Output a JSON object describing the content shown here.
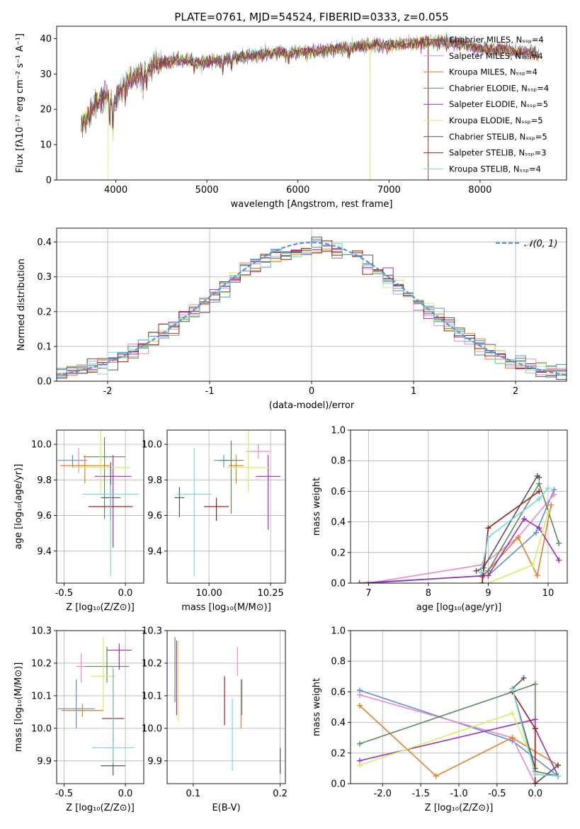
{
  "colors": [
    "#5b8fd8",
    "#e889c7",
    "#e67e22",
    "#5c8a5c",
    "#9b2eb8",
    "#d4f060",
    "#555555",
    "#9e1c1c",
    "#78d8d8"
  ],
  "chart_data": [
    {
      "id": "spectrum",
      "type": "line",
      "title": "PLATE=0761, MJD=54524, FIBERID=0333, z=0.055",
      "xlabel": "wavelength [Angstrom, rest frame]",
      "ylabel": "Flux [fλ10⁻¹⁷ erg cm⁻² s⁻¹ A⁻¹]",
      "xlim": [
        3350,
        8950
      ],
      "ylim": [
        0,
        43.5
      ],
      "xticks": [
        4000,
        5000,
        6000,
        7000,
        8000
      ],
      "yticks": [
        0,
        10,
        20,
        30,
        40
      ],
      "grid": false,
      "legend_position": "top-right",
      "legend": [
        "Chabrier MILES, Nₛₛₚ=4",
        "Salpeter MILES, Nₛₛₚ=4",
        "Kroupa MILES, Nₛₛₚ=4",
        "Chabrier ELODIE, Nₛₛₚ=4",
        "Salpeter ELODIE, Nₛₛₚ=5",
        "Kroupa ELODIE, Nₛₛₚ=5",
        "Chabrier STELIB, Nₛₛₚ=5",
        "Salpeter STELIB, Nₛₛₚ=3",
        "Kroupa STELIB, Nₛₛₚ=4"
      ],
      "legend_colors_index": [
        6,
        1,
        2,
        3,
        4,
        5,
        6,
        7,
        8
      ],
      "continuum": [
        [
          3620,
          16
        ],
        [
          3700,
          18
        ],
        [
          3800,
          22
        ],
        [
          3900,
          24
        ],
        [
          3980,
          22
        ],
        [
          4100,
          27
        ],
        [
          4200,
          29
        ],
        [
          4300,
          30
        ],
        [
          4400,
          32
        ],
        [
          4500,
          33
        ],
        [
          4700,
          34
        ],
        [
          4900,
          33
        ],
        [
          5000,
          33.5
        ],
        [
          5200,
          34
        ],
        [
          5400,
          35
        ],
        [
          5600,
          35.5
        ],
        [
          5800,
          36
        ],
        [
          6000,
          36
        ],
        [
          6200,
          36.5
        ],
        [
          6400,
          37
        ],
        [
          6600,
          37.5
        ],
        [
          6800,
          38
        ],
        [
          7000,
          38
        ],
        [
          7200,
          38.5
        ],
        [
          7400,
          39
        ],
        [
          7600,
          39
        ],
        [
          7800,
          38.5
        ],
        [
          8000,
          37
        ],
        [
          8200,
          37
        ],
        [
          8400,
          36
        ],
        [
          8600,
          36
        ],
        [
          8650,
          35
        ]
      ],
      "absorption_features": [
        [
          3933,
          8
        ],
        [
          3968,
          9
        ],
        [
          4102,
          4
        ],
        [
          4300,
          5
        ],
        [
          4340,
          4
        ],
        [
          4861,
          3
        ],
        [
          5175,
          4
        ],
        [
          5270,
          3
        ],
        [
          5893,
          3
        ],
        [
          6563,
          3
        ]
      ],
      "dropouts": [
        [
          3915,
          "Kroupa ELODIE"
        ],
        [
          6790,
          "Kroupa ELODIE"
        ],
        [
          6790,
          "Kroupa MILES"
        ],
        [
          7430,
          "Salpeter STELIB"
        ],
        [
          7430,
          "Kroupa MILES"
        ]
      ]
    },
    {
      "id": "residuals",
      "type": "line",
      "xlabel": "(data-model)/error",
      "ylabel": "Normed distribution",
      "xlim": [
        -2.5,
        2.5
      ],
      "ylim": [
        0,
        0.44
      ],
      "xticks": [
        -2,
        -1,
        0,
        1,
        2
      ],
      "yticks": [
        0.0,
        0.1,
        0.2,
        0.3,
        0.4
      ],
      "grid": true,
      "legend_position": "top-right",
      "legend": [
        "𝒩(0, 1)"
      ],
      "gaussian": {
        "mean": 0,
        "sigma": 1,
        "color": "#5b8fd8",
        "dash": true
      },
      "histogram_bins": {
        "start": -2.5,
        "width": 0.1,
        "count": 50
      }
    },
    {
      "id": "age-vs-Z",
      "type": "scatter",
      "xlabel": "Z [log₁₀(Z/Z⊙)]",
      "ylabel": "age  [log₁₀(age/yr)]",
      "xlim": [
        -0.56,
        0.15
      ],
      "ylim": [
        9.22,
        10.08
      ],
      "xticks": [
        -0.5,
        0.0
      ],
      "yticks": [
        9.4,
        9.6,
        9.8,
        10.0
      ],
      "grid": true,
      "points": [
        {
          "x": -0.43,
          "y": 9.91,
          "xerr": 0.12,
          "yerr": [
            0.04,
            0.03
          ],
          "c": 0
        },
        {
          "x": -0.38,
          "y": 9.88,
          "xerr": 0.04,
          "yerr": [
            0.04,
            0.1
          ],
          "c": 1
        },
        {
          "x": -0.33,
          "y": 9.88,
          "xerr": 0.2,
          "yerr": [
            0.1,
            0.06
          ],
          "c": 2
        },
        {
          "x": -0.17,
          "y": 9.93,
          "xerr": 0.17,
          "yerr": [
            0.35,
            0.11
          ],
          "c": 3
        },
        {
          "x": -0.1,
          "y": 9.82,
          "xerr": 0.15,
          "yerr": [
            0.4,
            0.12
          ],
          "c": 4
        },
        {
          "x": -0.2,
          "y": 9.87,
          "xerr": 0.24,
          "yerr": [
            0.14,
            0.22
          ],
          "c": 5
        },
        {
          "x": -0.12,
          "y": 9.7,
          "xerr": 0.08,
          "yerr": [
            0.1,
            0.2
          ],
          "c": 6
        },
        {
          "x": -0.12,
          "y": 9.65,
          "xerr": 0.18,
          "yerr": [
            0.08,
            0.05
          ],
          "c": 7
        },
        {
          "x": -0.12,
          "y": 9.72,
          "xerr": 0.23,
          "yerr": [
            0.46,
            0.05
          ],
          "c": 8
        }
      ]
    },
    {
      "id": "age-vs-mass",
      "type": "scatter",
      "xlabel": "mass [log₁₀(M/M⊙)]",
      "ylabel": "",
      "xlim": [
        9.83,
        10.31
      ],
      "ylim": [
        9.22,
        10.08
      ],
      "xticks": [
        10.0,
        10.25
      ],
      "yticks": [
        9.4,
        9.6,
        9.8,
        10.0
      ],
      "grid": true,
      "points": [
        {
          "x": 10.06,
          "y": 9.91,
          "xerr": 0.04,
          "yerr": [
            0.04,
            0.03
          ],
          "c": 0
        },
        {
          "x": 10.2,
          "y": 9.96,
          "xerr": 0.05,
          "yerr": [
            0.04,
            0.04
          ],
          "c": 1
        },
        {
          "x": 10.11,
          "y": 9.88,
          "xerr": 0.03,
          "yerr": [
            0.1,
            0.06
          ],
          "c": 2
        },
        {
          "x": 10.09,
          "y": 9.91,
          "xerr": 0.05,
          "yerr": [
            0.3,
            0.11
          ],
          "c": 3
        },
        {
          "x": 10.24,
          "y": 9.82,
          "xerr": 0.05,
          "yerr": [
            0.3,
            0.12
          ],
          "c": 4
        },
        {
          "x": 10.16,
          "y": 9.87,
          "xerr": 0.09,
          "yerr": [
            0.14,
            0.22
          ],
          "c": 5
        },
        {
          "x": 9.88,
          "y": 9.7,
          "xerr": 0.02,
          "yerr": [
            0.11,
            0.06
          ],
          "c": 6
        },
        {
          "x": 10.03,
          "y": 9.65,
          "xerr": 0.05,
          "yerr": [
            0.08,
            0.05
          ],
          "c": 7
        },
        {
          "x": 9.94,
          "y": 9.72,
          "xerr": 0.07,
          "yerr": [
            0.46,
            0.26
          ],
          "c": 8
        }
      ]
    },
    {
      "id": "massweight-vs-age",
      "type": "line",
      "xlabel": "age  [log₁₀(age/yr)]",
      "ylabel": "mass weight",
      "xlim": [
        6.7,
        10.32
      ],
      "ylim": [
        0,
        1.0
      ],
      "xticks": [
        7,
        8,
        9,
        10
      ],
      "yticks": [
        0.0,
        0.2,
        0.4,
        0.6,
        0.8,
        1.0
      ],
      "grid": true,
      "series": [
        {
          "c": 0,
          "x": [
            7.0,
            9.0,
            9.8,
            10.1
          ],
          "y": [
            0.0,
            0.05,
            0.33,
            0.61
          ]
        },
        {
          "c": 1,
          "x": [
            7.0,
            8.9,
            9.5,
            10.1
          ],
          "y": [
            0.0,
            0.12,
            0.3,
            0.58
          ]
        },
        {
          "c": 2,
          "x": [
            8.9,
            9.5,
            9.82,
            10.05
          ],
          "y": [
            0.04,
            0.3,
            0.05,
            0.51
          ]
        },
        {
          "c": 3,
          "x": [
            8.9,
            9.0,
            9.85,
            10.18
          ],
          "y": [
            0.05,
            0.08,
            0.65,
            0.26
          ]
        },
        {
          "c": 4,
          "x": [
            6.85,
            9.0,
            9.6,
            9.85,
            10.18
          ],
          "y": [
            0.0,
            0.05,
            0.42,
            0.36,
            0.15
          ]
        },
        {
          "c": 5,
          "x": [
            9.0,
            9.75,
            10.0
          ],
          "y": [
            0.0,
            0.12,
            0.46
          ]
        },
        {
          "c": 6,
          "x": [
            8.8,
            8.92,
            9.82,
            9.85
          ],
          "y": [
            0.08,
            0.1,
            0.7,
            0.69
          ]
        },
        {
          "c": 7,
          "x": [
            8.9,
            9.0,
            9.85
          ],
          "y": [
            0.0,
            0.36,
            0.6
          ]
        },
        {
          "c": 8,
          "x": [
            8.88,
            9.0,
            9.85,
            10.0
          ],
          "y": [
            0.07,
            0.3,
            0.55,
            0.62
          ]
        }
      ]
    },
    {
      "id": "mass-vs-Z",
      "type": "scatter",
      "xlabel": "Z [log₁₀(Z/Z⊙)]",
      "ylabel": "mass [log₁₀(M/M⊙)]",
      "xlim": [
        -0.56,
        0.15
      ],
      "ylim": [
        9.83,
        10.3
      ],
      "xticks": [
        -0.5,
        0.0
      ],
      "yticks": [
        9.9,
        10.0,
        10.1,
        10.2,
        10.3
      ],
      "grid": true,
      "points": [
        {
          "x": -0.4,
          "y": 10.06,
          "xerr": 0.15,
          "yerr": [
            0.06,
            0.09
          ],
          "c": 0
        },
        {
          "x": -0.36,
          "y": 10.19,
          "xerr": 0.04,
          "yerr": [
            0.05,
            0.04
          ],
          "c": 1
        },
        {
          "x": -0.35,
          "y": 10.055,
          "xerr": 0.17,
          "yerr": [
            0.02,
            0.02
          ],
          "c": 2
        },
        {
          "x": -0.15,
          "y": 10.19,
          "xerr": 0.18,
          "yerr": [
            0.05,
            0.06
          ],
          "c": 3
        },
        {
          "x": -0.05,
          "y": 10.24,
          "xerr": 0.1,
          "yerr": [
            0.06,
            0.02
          ],
          "c": 4
        },
        {
          "x": -0.18,
          "y": 10.16,
          "xerr": 0.1,
          "yerr": [
            0.11,
            0.12
          ],
          "c": 5
        },
        {
          "x": -0.1,
          "y": 9.885,
          "xerr": 0.1,
          "yerr": [
            0.03,
            0.09
          ],
          "c": 6
        },
        {
          "x": -0.1,
          "y": 10.03,
          "xerr": 0.09,
          "yerr": [
            0.06,
            0.15
          ],
          "c": 7
        },
        {
          "x": -0.1,
          "y": 9.94,
          "xerr": 0.17,
          "yerr": [
            0.05,
            0.25
          ],
          "c": 8
        }
      ]
    },
    {
      "id": "mass-vs-EBV",
      "type": "scatter",
      "xlabel": "E(B-V)",
      "ylabel": "",
      "xlim": [
        0.07,
        0.206
      ],
      "ylim": [
        9.83,
        10.3
      ],
      "xticks": [
        0.1,
        0.2
      ],
      "yticks": [
        9.9,
        10.0,
        10.1,
        10.2,
        10.3
      ],
      "grid": true,
      "points": [
        {
          "x": 0.156,
          "y": 10.1,
          "yerr": [
            0.06,
            0.05
          ],
          "c": 0
        },
        {
          "x": 0.151,
          "y": 10.2,
          "yerr": [
            0.04,
            0.05
          ],
          "c": 1
        },
        {
          "x": 0.155,
          "y": 10.1,
          "yerr": [
            0.1,
            0.05
          ],
          "c": 2
        },
        {
          "x": 0.079,
          "y": 10.18,
          "yerr": [
            0.1,
            0.1
          ],
          "c": 3
        },
        {
          "x": 0.081,
          "y": 10.2,
          "yerr": [
            0.16,
            0.07
          ],
          "c": 4
        },
        {
          "x": 0.083,
          "y": 10.15,
          "yerr": [
            0.13,
            0.12
          ],
          "c": 5
        },
        {
          "x": 0.2,
          "y": 9.9,
          "yerr": [
            0.04,
            0.04
          ],
          "c": 6
        },
        {
          "x": 0.136,
          "y": 10.07,
          "yerr": [
            0.06,
            0.09
          ],
          "c": 7
        },
        {
          "x": 0.145,
          "y": 9.98,
          "yerr": [
            0.11,
            0.11
          ],
          "c": 8
        }
      ]
    },
    {
      "id": "massweight-vs-Z",
      "type": "line",
      "xlabel": "Z [log₁₀(Z/Z⊙)]",
      "ylabel": "mass weight",
      "xlim": [
        -2.42,
        0.42
      ],
      "ylim": [
        0,
        1.0
      ],
      "xticks": [
        -2.0,
        -1.5,
        -1.0,
        -0.5,
        0.0
      ],
      "yticks": [
        0.0,
        0.2,
        0.4,
        0.6,
        0.8,
        1.0
      ],
      "grid": true,
      "series": [
        {
          "c": 0,
          "x": [
            -2.3,
            -0.3,
            0.3,
            0.3
          ],
          "y": [
            0.61,
            0.28,
            0.05,
            0.05
          ]
        },
        {
          "c": 1,
          "x": [
            -2.3,
            -0.3,
            0.0,
            0.3
          ],
          "y": [
            0.58,
            0.3,
            0.0,
            0.12
          ]
        },
        {
          "c": 2,
          "x": [
            -2.3,
            -1.3,
            -0.3,
            0.3
          ],
          "y": [
            0.51,
            0.05,
            0.3,
            0.12
          ]
        },
        {
          "c": 3,
          "x": [
            -2.3,
            0.0,
            0.0,
            0.3
          ],
          "y": [
            0.26,
            0.65,
            0.08,
            0.05
          ]
        },
        {
          "c": 4,
          "x": [
            -2.3,
            0.0,
            0.0,
            0.3
          ],
          "y": [
            0.15,
            0.42,
            0.36,
            0.05
          ]
        },
        {
          "c": 5,
          "x": [
            -2.3,
            -0.3,
            0.0,
            0.0
          ],
          "y": [
            0.12,
            0.46,
            0.12,
            0.0
          ]
        },
        {
          "c": 6,
          "x": [
            -0.15,
            -0.3,
            0.0,
            0.0,
            0.3
          ],
          "y": [
            0.69,
            0.62,
            0.1,
            0.0,
            0.12
          ]
        },
        {
          "c": 7,
          "x": [
            -0.3,
            0.0,
            0.0
          ],
          "y": [
            0.6,
            0.36,
            0.0
          ]
        },
        {
          "c": 8,
          "x": [
            -0.3,
            0.0,
            0.3
          ],
          "y": [
            0.62,
            0.06,
            0.05
          ]
        }
      ]
    }
  ]
}
